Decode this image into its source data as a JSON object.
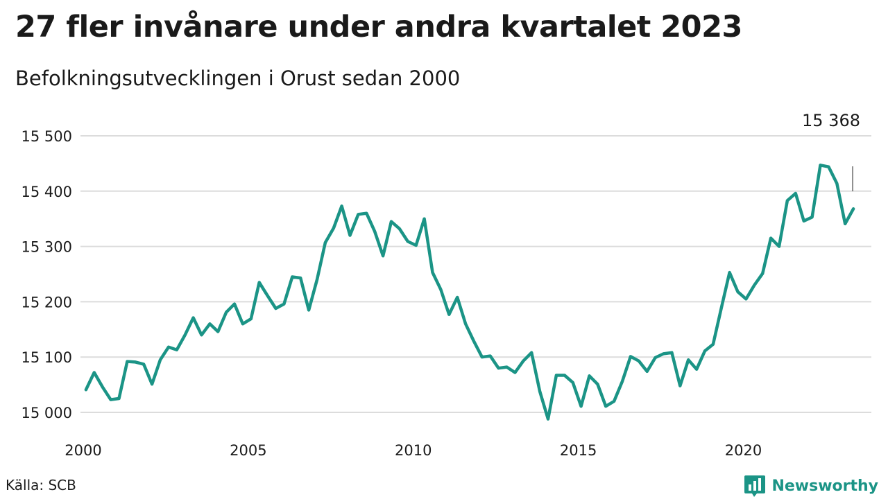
{
  "colors": {
    "line": "#1b9486",
    "grid": "#dcdcdc",
    "brand": "#1b9486"
  },
  "header": {
    "title": "27 fler invånare under andra kvartalet 2023",
    "subtitle": "Befolkningsutvecklingen i Orust sedan 2000"
  },
  "footer": {
    "source": "Källa: SCB",
    "brand": "Newsworthy",
    "brand_icon": "bar-chart-logo-icon"
  },
  "chart_data": {
    "type": "line",
    "title": "27 fler invånare under andra kvartalet 2023",
    "subtitle": "Befolkningsutvecklingen i Orust sedan 2000",
    "x_start": 2000.125,
    "x_step": 0.25,
    "series": [
      {
        "values": [
          15041,
          15072,
          15046,
          15023,
          15025,
          15092,
          15091,
          15087,
          15051,
          15095,
          15118,
          15113,
          15140,
          15171,
          15140,
          15160,
          15146,
          15181,
          15196,
          15160,
          15169,
          15235,
          15211,
          15188,
          15196,
          15245,
          15243,
          15185,
          15240,
          15307,
          15333,
          15373,
          15320,
          15358,
          15360,
          15327,
          15283,
          15345,
          15332,
          15309,
          15302,
          15350,
          15253,
          15222,
          15177,
          15208,
          15160,
          15129,
          15100,
          15102,
          15080,
          15082,
          15072,
          15093,
          15108,
          15038,
          14988,
          15067,
          15067,
          15054,
          15011,
          15066,
          15051,
          15011,
          15020,
          15056,
          15101,
          15093,
          15074,
          15099,
          15106,
          15108,
          15048,
          15095,
          15078,
          15111,
          15123,
          15189,
          15253,
          15218,
          15205,
          15230,
          15251,
          15315,
          15300,
          15383,
          15396,
          15346,
          15353,
          15447,
          15444,
          15414,
          15341,
          15368
        ]
      }
    ],
    "y_ticks": [
      15000,
      15100,
      15200,
      15300,
      15400,
      15500
    ],
    "y_tick_labels": [
      "15 000",
      "15 100",
      "15 200",
      "15 300",
      "15 400",
      "15 500"
    ],
    "x_ticks": [
      2000,
      2005,
      2010,
      2015,
      2020
    ],
    "x_tick_labels": [
      "2000",
      "2005",
      "2010",
      "2015",
      "2020"
    ],
    "xlim": [
      2000,
      2023.5
    ],
    "ylim": [
      14975,
      15500
    ],
    "grid": true,
    "annotations": [
      {
        "label": "15 368",
        "x": 2023.375,
        "value": 15368
      }
    ]
  }
}
